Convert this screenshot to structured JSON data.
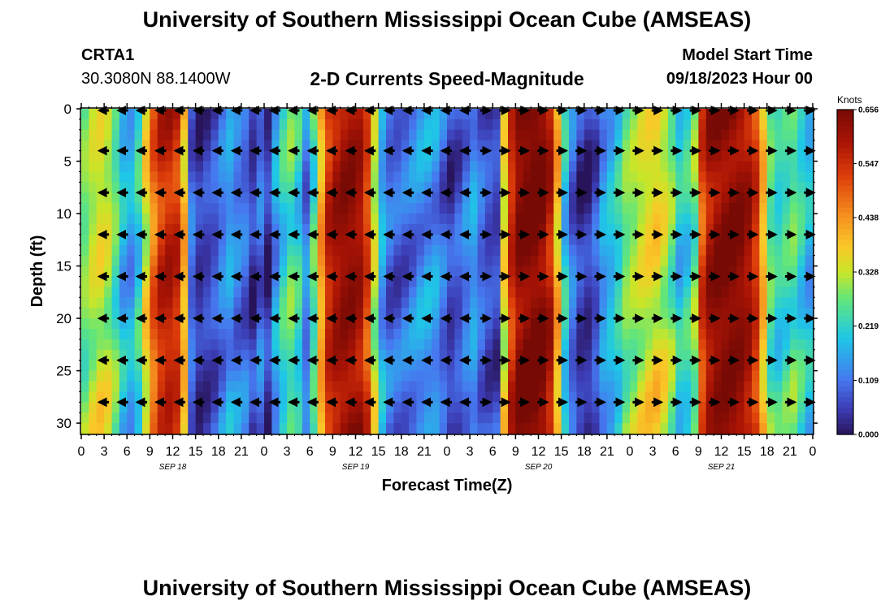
{
  "page": {
    "title": "University of Southern Mississippi Ocean Cube (AMSEAS)",
    "station_id": "CRTA1",
    "station_location": "30.3080N  88.1400W",
    "center_title": "2-D Currents Speed-Magnitude",
    "model_start_label": "Model Start Time",
    "model_start_value": "09/18/2023 Hour 00",
    "footer_title": "University of Southern Mississippi Ocean Cube (AMSEAS)"
  },
  "chart_data": {
    "type": "heatmap",
    "title": "2-D Currents Speed-Magnitude",
    "xlabel": "Forecast Time(Z)",
    "ylabel": "Depth (ft)",
    "xlim": [
      0,
      96
    ],
    "ylim": [
      0,
      31
    ],
    "x_tick_hours": [
      0,
      3,
      6,
      9,
      12,
      15,
      18,
      21,
      24,
      27,
      30,
      33,
      36,
      39,
      42,
      45,
      48,
      51,
      54,
      57,
      60,
      63,
      66,
      69,
      72,
      75,
      78,
      81,
      84,
      87,
      90,
      93,
      96
    ],
    "x_tick_labels": [
      "0",
      "3",
      "6",
      "9",
      "12",
      "15",
      "18",
      "21",
      "0",
      "3",
      "6",
      "9",
      "12",
      "15",
      "18",
      "21",
      "0",
      "3",
      "6",
      "9",
      "12",
      "15",
      "18",
      "21",
      "0",
      "3",
      "6",
      "9",
      "12",
      "15",
      "18",
      "21",
      "0"
    ],
    "y_ticks": [
      0,
      5,
      10,
      15,
      20,
      25,
      30
    ],
    "y_tick_labels": [
      "0",
      "5",
      "10",
      "15",
      "20",
      "25",
      "30"
    ],
    "date_labels": [
      {
        "hour": 12,
        "label": "SEP 18"
      },
      {
        "hour": 36,
        "label": "SEP 19"
      },
      {
        "hour": 60,
        "label": "SEP 20"
      },
      {
        "hour": 84,
        "label": "SEP 21"
      }
    ],
    "colorbar": {
      "unit": "Knots",
      "min": 0.0,
      "max": 0.656,
      "tick_values": [
        0.0,
        0.109,
        0.219,
        0.328,
        0.438,
        0.547,
        0.656
      ],
      "tick_labels": [
        "0.000",
        "0.109",
        "0.219",
        "0.328",
        "0.438",
        "0.547",
        "0.656"
      ]
    },
    "speed_profile_by_hour": {
      "description": "approximate surface-layer current speed (knots) per forecast hour",
      "hours": [
        0,
        1,
        2,
        3,
        4,
        5,
        6,
        7,
        8,
        9,
        10,
        11,
        12,
        13,
        14,
        15,
        16,
        17,
        18,
        19,
        20,
        21,
        22,
        23,
        24,
        25,
        26,
        27,
        28,
        29,
        30,
        31,
        32,
        33,
        34,
        35,
        36,
        37,
        38,
        39,
        40,
        41,
        42,
        43,
        44,
        45,
        46,
        47,
        48,
        49,
        50,
        51,
        52,
        53,
        54,
        55,
        56,
        57,
        58,
        59,
        60,
        61,
        62,
        63,
        64,
        65,
        66,
        67,
        68,
        69,
        70,
        71,
        72,
        73,
        74,
        75,
        76,
        77,
        78,
        79,
        80,
        81,
        82,
        83,
        84,
        85,
        86,
        87,
        88,
        89,
        90,
        91,
        92,
        93,
        94,
        95,
        96
      ],
      "speed": [
        0.28,
        0.32,
        0.34,
        0.32,
        0.26,
        0.18,
        0.16,
        0.22,
        0.35,
        0.48,
        0.55,
        0.57,
        0.55,
        0.4,
        0.1,
        0.05,
        0.06,
        0.08,
        0.12,
        0.15,
        0.12,
        0.1,
        0.05,
        0.1,
        0.04,
        0.15,
        0.22,
        0.26,
        0.22,
        0.12,
        0.25,
        0.42,
        0.56,
        0.6,
        0.62,
        0.62,
        0.6,
        0.52,
        0.32,
        0.16,
        0.1,
        0.09,
        0.1,
        0.12,
        0.14,
        0.15,
        0.14,
        0.1,
        0.06,
        0.08,
        0.12,
        0.15,
        0.1,
        0.07,
        0.06,
        0.35,
        0.55,
        0.63,
        0.65,
        0.66,
        0.64,
        0.58,
        0.4,
        0.2,
        0.1,
        0.05,
        0.04,
        0.08,
        0.15,
        0.18,
        0.22,
        0.28,
        0.3,
        0.33,
        0.35,
        0.36,
        0.33,
        0.28,
        0.2,
        0.22,
        0.28,
        0.52,
        0.6,
        0.63,
        0.64,
        0.64,
        0.63,
        0.6,
        0.54,
        0.4,
        0.26,
        0.22,
        0.24,
        0.26,
        0.22,
        0.18,
        0.16
      ]
    },
    "arrows": {
      "description": "current direction vectors; E = eastward, W = westward",
      "depth_rows_ft": [
        0,
        4,
        8,
        12,
        16,
        20,
        24,
        28
      ],
      "direction_by_period": [
        {
          "hours": [
            0,
            13
          ],
          "direction": "W"
        },
        {
          "hours": [
            13,
            31
          ],
          "direction": "W"
        },
        {
          "hours": [
            31,
            53
          ],
          "direction": "W"
        },
        {
          "hours": [
            53,
            96
          ],
          "direction": "E"
        }
      ]
    }
  }
}
